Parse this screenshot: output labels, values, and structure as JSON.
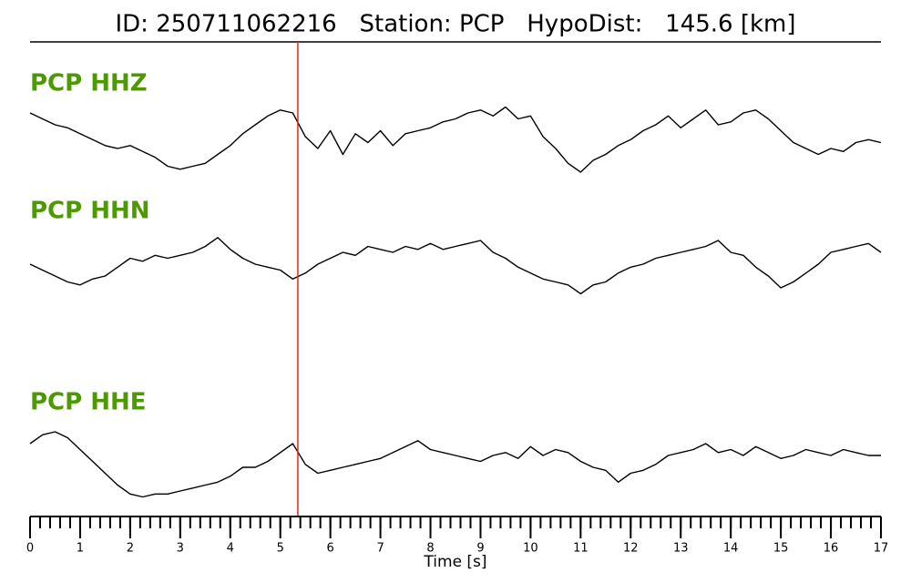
{
  "chart_data": {
    "type": "waveform",
    "title": "ID: 250711062216   Station: PCP   HypoDist:   145.6 [km]",
    "xlabel": "Time [s]",
    "xlim": [
      0,
      17
    ],
    "xticks": [
      0,
      1,
      2,
      3,
      4,
      5,
      6,
      7,
      8,
      9,
      10,
      11,
      12,
      13,
      14,
      15,
      16,
      17
    ],
    "xminor_step": 0.2,
    "ylim": [
      -1,
      1
    ],
    "marker_x": 5.35,
    "marker_color": "#e8261f",
    "x": [
      0,
      0.25,
      0.5,
      0.75,
      1,
      1.25,
      1.5,
      1.75,
      2,
      2.25,
      2.5,
      2.75,
      3,
      3.25,
      3.5,
      3.75,
      4,
      4.25,
      4.5,
      4.75,
      5,
      5.25,
      5.5,
      5.75,
      6,
      6.25,
      6.5,
      6.75,
      7,
      7.25,
      7.5,
      7.75,
      8,
      8.25,
      8.5,
      8.75,
      9,
      9.25,
      9.5,
      9.75,
      10,
      10.25,
      10.5,
      10.75,
      11,
      11.25,
      11.5,
      11.75,
      12,
      12.25,
      12.5,
      12.75,
      13,
      13.25,
      13.5,
      13.75,
      14,
      14.25,
      14.5,
      14.75,
      15,
      15.25,
      15.5,
      15.75,
      16,
      16.25,
      16.5,
      16.75,
      17
    ],
    "series": [
      {
        "name": "PCP HHZ",
        "label_color": "#4c9a00",
        "color": "#000000",
        "values": [
          0.4,
          0.3,
          0.2,
          0.15,
          0.05,
          -0.05,
          -0.15,
          -0.2,
          -0.15,
          -0.25,
          -0.35,
          -0.5,
          -0.55,
          -0.5,
          -0.45,
          -0.3,
          -0.15,
          0.05,
          0.2,
          0.35,
          0.45,
          0.4,
          0.0,
          -0.2,
          0.1,
          -0.3,
          0.05,
          -0.1,
          0.1,
          -0.15,
          0.05,
          0.1,
          0.15,
          0.25,
          0.3,
          0.4,
          0.45,
          0.35,
          0.5,
          0.3,
          0.35,
          0.0,
          -0.2,
          -0.45,
          -0.6,
          -0.4,
          -0.3,
          -0.15,
          -0.05,
          0.1,
          0.2,
          0.35,
          0.15,
          0.3,
          0.45,
          0.2,
          0.25,
          0.4,
          0.45,
          0.3,
          0.1,
          -0.1,
          -0.2,
          -0.3,
          -0.2,
          -0.25,
          -0.1,
          -0.05,
          -0.1
        ]
      },
      {
        "name": "PCP HHN",
        "label_color": "#4c9a00",
        "color": "#000000",
        "values": [
          0.0,
          -0.1,
          -0.2,
          -0.3,
          -0.35,
          -0.25,
          -0.2,
          -0.05,
          0.1,
          0.05,
          0.15,
          0.1,
          0.15,
          0.2,
          0.3,
          0.45,
          0.25,
          0.1,
          0.0,
          -0.05,
          -0.1,
          -0.25,
          -0.15,
          0.0,
          0.1,
          0.2,
          0.15,
          0.3,
          0.25,
          0.2,
          0.3,
          0.25,
          0.35,
          0.25,
          0.3,
          0.35,
          0.4,
          0.2,
          0.1,
          -0.05,
          -0.15,
          -0.25,
          -0.3,
          -0.35,
          -0.5,
          -0.35,
          -0.3,
          -0.15,
          -0.05,
          0.0,
          0.1,
          0.15,
          0.2,
          0.25,
          0.3,
          0.4,
          0.2,
          0.15,
          -0.05,
          -0.2,
          -0.4,
          -0.3,
          -0.15,
          0.0,
          0.2,
          0.25,
          0.3,
          0.35,
          0.2
        ]
      },
      {
        "name": "PCP HHE",
        "label_color": "#4c9a00",
        "color": "#000000",
        "values": [
          0.2,
          0.35,
          0.4,
          0.3,
          0.1,
          -0.1,
          -0.3,
          -0.5,
          -0.65,
          -0.7,
          -0.65,
          -0.65,
          -0.6,
          -0.55,
          -0.5,
          -0.45,
          -0.35,
          -0.2,
          -0.2,
          -0.1,
          0.05,
          0.2,
          -0.15,
          -0.3,
          -0.25,
          -0.2,
          -0.15,
          -0.1,
          -0.05,
          0.05,
          0.15,
          0.25,
          0.1,
          0.05,
          0.0,
          -0.05,
          -0.1,
          0.0,
          0.05,
          -0.05,
          0.15,
          0.0,
          0.1,
          0.05,
          -0.1,
          -0.2,
          -0.25,
          -0.45,
          -0.3,
          -0.25,
          -0.15,
          0.0,
          0.05,
          0.1,
          0.2,
          0.05,
          0.1,
          0.0,
          0.15,
          0.05,
          -0.05,
          0.0,
          0.1,
          0.05,
          0.0,
          0.1,
          0.05,
          0.0,
          0.0
        ]
      }
    ]
  }
}
